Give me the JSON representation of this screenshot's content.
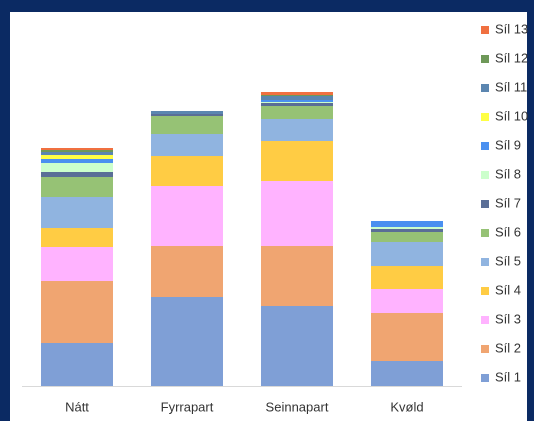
{
  "chart_data": {
    "type": "stacked_bar",
    "categories": [
      "Nátt",
      "Fyrrapart",
      "Seinnapart",
      "Kvøld"
    ],
    "ylim": [
      0,
      300
    ],
    "legend": "right",
    "series": [
      {
        "name": "Síl 1",
        "color": "#7f9fd6",
        "values": [
          43,
          89,
          80,
          25
        ]
      },
      {
        "name": "Síl 2",
        "color": "#f0a571",
        "values": [
          62,
          51,
          60,
          48
        ]
      },
      {
        "name": "Síl 3",
        "color": "#ffb3ff",
        "values": [
          34,
          60,
          65,
          24
        ]
      },
      {
        "name": "Síl 4",
        "color": "#ffcc44",
        "values": [
          19,
          30,
          40,
          23
        ]
      },
      {
        "name": "Síl 5",
        "color": "#90b4e0",
        "values": [
          31,
          22,
          22,
          24
        ]
      },
      {
        "name": "Síl 6",
        "color": "#96c275",
        "values": [
          20,
          18,
          13,
          10
        ]
      },
      {
        "name": "Síl 7",
        "color": "#5a6e96",
        "values": [
          5,
          2,
          3,
          3
        ]
      },
      {
        "name": "Síl 8",
        "color": "#ccffcc",
        "values": [
          9,
          0,
          1,
          2
        ]
      },
      {
        "name": "Síl 9",
        "color": "#4a90f0",
        "values": [
          4,
          0,
          2,
          6
        ]
      },
      {
        "name": "Síl 10",
        "color": "#ffff44",
        "values": [
          4,
          0,
          0,
          0
        ]
      },
      {
        "name": "Síl 11",
        "color": "#5b86b0",
        "values": [
          3,
          3,
          4,
          0
        ]
      },
      {
        "name": "Síl 12",
        "color": "#6e9858",
        "values": [
          2,
          0,
          1,
          0
        ]
      },
      {
        "name": "Síl 13",
        "color": "#f07040",
        "values": [
          2,
          0,
          3,
          0
        ]
      }
    ]
  }
}
